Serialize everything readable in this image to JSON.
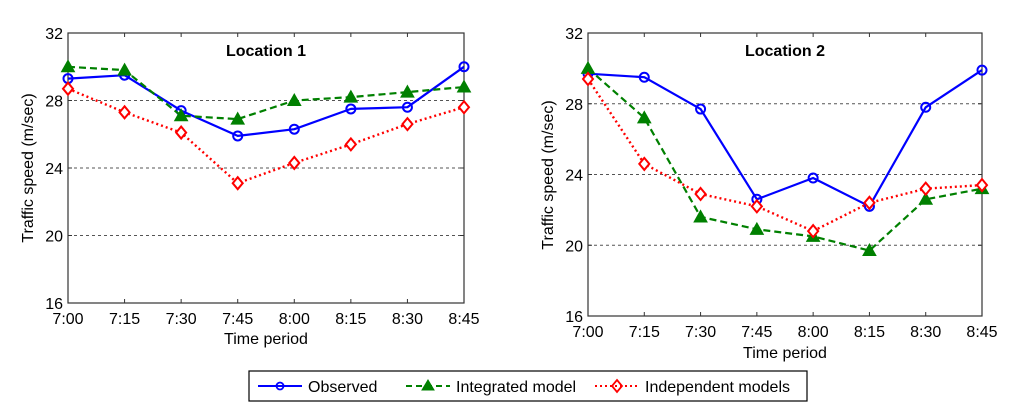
{
  "chart_data": [
    {
      "type": "line",
      "title": "Location 1",
      "xlabel": "Time period",
      "ylabel": "Traffic speed (m/sec)",
      "categories": [
        "7:00",
        "7:15",
        "7:30",
        "7:45",
        "8:00",
        "8:15",
        "8:30",
        "8:45"
      ],
      "ylim": [
        16,
        32
      ],
      "yticks": [
        16,
        20,
        24,
        28,
        32
      ],
      "grid": "horizontal-dashed",
      "series": [
        {
          "name": "Observed",
          "color": "#0000ff",
          "style": "solid",
          "marker": "circle",
          "values": [
            29.3,
            29.5,
            27.4,
            25.9,
            26.3,
            27.5,
            27.6,
            30.0
          ]
        },
        {
          "name": "Integrated model",
          "color": "#008000",
          "style": "dashed",
          "marker": "triangle",
          "values": [
            30.0,
            29.8,
            27.1,
            26.9,
            28.0,
            28.2,
            28.5,
            28.8
          ]
        },
        {
          "name": "Independent models",
          "color": "#ff0000",
          "style": "dotted",
          "marker": "diamond",
          "values": [
            28.7,
            27.3,
            26.1,
            23.1,
            24.3,
            25.4,
            26.6,
            27.6
          ]
        }
      ]
    },
    {
      "type": "line",
      "title": "Location 2",
      "xlabel": "Time period",
      "ylabel": "Traffic speed (m/sec)",
      "categories": [
        "7:00",
        "7:15",
        "7:30",
        "7:45",
        "8:00",
        "8:15",
        "8:30",
        "8:45"
      ],
      "ylim": [
        16,
        32
      ],
      "yticks": [
        16,
        20,
        24,
        28,
        32
      ],
      "grid": "horizontal-dashed",
      "series": [
        {
          "name": "Observed",
          "color": "#0000ff",
          "style": "solid",
          "marker": "circle",
          "values": [
            29.7,
            29.5,
            27.7,
            22.6,
            23.8,
            22.2,
            27.8,
            29.9
          ]
        },
        {
          "name": "Integrated model",
          "color": "#008000",
          "style": "dashed",
          "marker": "triangle",
          "values": [
            30.0,
            27.2,
            21.6,
            20.9,
            20.5,
            19.7,
            22.6,
            23.2
          ]
        },
        {
          "name": "Independent models",
          "color": "#ff0000",
          "style": "dotted",
          "marker": "diamond",
          "values": [
            29.4,
            24.6,
            22.9,
            22.2,
            20.8,
            22.4,
            23.2,
            23.4
          ]
        }
      ]
    }
  ],
  "legend": {
    "placement": "bottom-center",
    "entries": [
      "Observed",
      "Integrated model",
      "Independent models"
    ]
  }
}
